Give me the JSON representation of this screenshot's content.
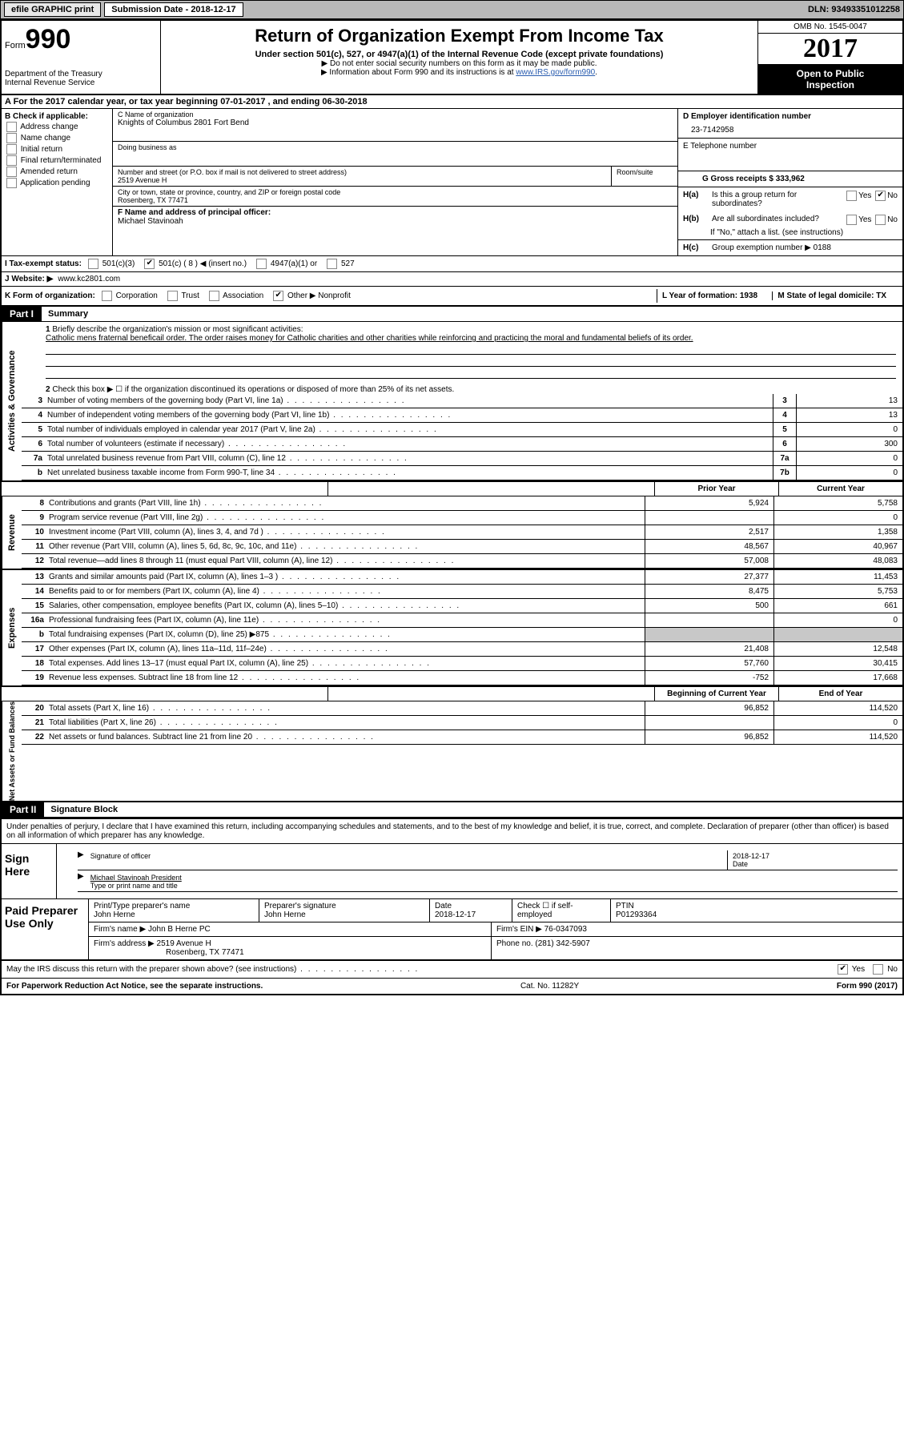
{
  "top": {
    "efile": "efile GRAPHIC print",
    "submission_label": "Submission Date - 2018-12-17",
    "dln": "DLN: 93493351012258"
  },
  "header": {
    "form": "Form",
    "num": "990",
    "dept1": "Department of the Treasury",
    "dept2": "Internal Revenue Service",
    "title": "Return of Organization Exempt From Income Tax",
    "sub1": "Under section 501(c), 527, or 4947(a)(1) of the Internal Revenue Code (except private foundations)",
    "sub2a": "▶ Do not enter social security numbers on this form as it may be made public.",
    "sub2b_pre": "▶ Information about Form 990 and its instructions is at ",
    "sub2b_link": "www.IRS.gov/form990",
    "omb": "OMB No. 1545-0047",
    "year": "2017",
    "open1": "Open to Public",
    "open2": "Inspection"
  },
  "a_line": "A  For the 2017 calendar year, or tax year beginning 07-01-2017    , and ending 06-30-2018",
  "b": {
    "header": "B Check if applicable:",
    "opts": [
      "Address change",
      "Name change",
      "Initial return",
      "Final return/terminated",
      "Amended return",
      "Application pending"
    ]
  },
  "c": {
    "label": "C Name of organization",
    "name": "Knights of Columbus 2801 Fort Bend",
    "dba_label": "Doing business as",
    "addr_label": "Number and street (or P.O. box if mail is not delivered to street address)",
    "room_label": "Room/suite",
    "addr": "2519 Avenue H",
    "city_label": "City or town, state or province, country, and ZIP or foreign postal code",
    "city": "Rosenberg, TX  77471",
    "f_label": "F Name and address of principal officer:",
    "f_name": "Michael Stavinoah"
  },
  "d": {
    "label": "D Employer identification number",
    "ein": "23-7142958",
    "e_label": "E Telephone number",
    "g_label": "G Gross receipts $ 333,962"
  },
  "h": {
    "ha": "Is this a group return for subordinates?",
    "hb": "Are all subordinates included?",
    "ifno": "If \"No,\" attach a list. (see instructions)",
    "hc": "Group exemption number ▶   0188",
    "yes": "Yes",
    "no": "No"
  },
  "i": {
    "label": "I   Tax-exempt status:",
    "o1": "501(c)(3)",
    "o2": "501(c) ( 8 ) ◀ (insert no.)",
    "o3": "4947(a)(1) or",
    "o4": "527"
  },
  "j": {
    "label": "J   Website: ▶",
    "val": "www.kc2801.com"
  },
  "k": {
    "label": "K Form of organization:",
    "o1": "Corporation",
    "o2": "Trust",
    "o3": "Association",
    "o4": "Other ▶ Nonprofit",
    "l": "L Year of formation: 1938",
    "m": "M State of legal domicile: TX"
  },
  "part1": {
    "part": "Part I",
    "title": "Summary",
    "tab_act": "Activities & Governance",
    "tab_rev": "Revenue",
    "tab_exp": "Expenses",
    "tab_net": "Net Assets or Fund Balances",
    "l1": "Briefly describe the organization's mission or most significant activities:",
    "mission": "Catholic mens fraternal beneficail order. The order raises money for Catholic charities and other charities while reinforcing and practicing the moral and fundamental beliefs of its order.",
    "l2": "Check this box ▶ ☐  if the organization discontinued its operations or disposed of more than 25% of its net assets.",
    "rows_act": [
      {
        "n": "3",
        "d": "Number of voting members of the governing body (Part VI, line 1a)",
        "b": "3",
        "v": "13"
      },
      {
        "n": "4",
        "d": "Number of independent voting members of the governing body (Part VI, line 1b)",
        "b": "4",
        "v": "13"
      },
      {
        "n": "5",
        "d": "Total number of individuals employed in calendar year 2017 (Part V, line 2a)",
        "b": "5",
        "v": "0"
      },
      {
        "n": "6",
        "d": "Total number of volunteers (estimate if necessary)",
        "b": "6",
        "v": "300"
      },
      {
        "n": "7a",
        "d": "Total unrelated business revenue from Part VIII, column (C), line 12",
        "b": "7a",
        "v": "0"
      },
      {
        "n": "b",
        "d": "Net unrelated business taxable income from Form 990-T, line 34",
        "b": "7b",
        "v": "0"
      }
    ],
    "prior": "Prior Year",
    "current": "Current Year",
    "rows_rev": [
      {
        "n": "8",
        "d": "Contributions and grants (Part VIII, line 1h)",
        "p": "5,924",
        "c": "5,758"
      },
      {
        "n": "9",
        "d": "Program service revenue (Part VIII, line 2g)",
        "p": "",
        "c": "0"
      },
      {
        "n": "10",
        "d": "Investment income (Part VIII, column (A), lines 3, 4, and 7d )",
        "p": "2,517",
        "c": "1,358"
      },
      {
        "n": "11",
        "d": "Other revenue (Part VIII, column (A), lines 5, 6d, 8c, 9c, 10c, and 11e)",
        "p": "48,567",
        "c": "40,967"
      },
      {
        "n": "12",
        "d": "Total revenue—add lines 8 through 11 (must equal Part VIII, column (A), line 12)",
        "p": "57,008",
        "c": "48,083"
      }
    ],
    "rows_exp": [
      {
        "n": "13",
        "d": "Grants and similar amounts paid (Part IX, column (A), lines 1–3 )",
        "p": "27,377",
        "c": "11,453"
      },
      {
        "n": "14",
        "d": "Benefits paid to or for members (Part IX, column (A), line 4)",
        "p": "8,475",
        "c": "5,753"
      },
      {
        "n": "15",
        "d": "Salaries, other compensation, employee benefits (Part IX, column (A), lines 5–10)",
        "p": "500",
        "c": "661"
      },
      {
        "n": "16a",
        "d": "Professional fundraising fees (Part IX, column (A), line 11e)",
        "p": "",
        "c": "0"
      },
      {
        "n": "b",
        "d": "Total fundraising expenses (Part IX, column (D), line 25) ▶875",
        "p": "SHADE",
        "c": "SHADE"
      },
      {
        "n": "17",
        "d": "Other expenses (Part IX, column (A), lines 11a–11d, 11f–24e)",
        "p": "21,408",
        "c": "12,548"
      },
      {
        "n": "18",
        "d": "Total expenses. Add lines 13–17 (must equal Part IX, column (A), line 25)",
        "p": "57,760",
        "c": "30,415"
      },
      {
        "n": "19",
        "d": "Revenue less expenses. Subtract line 18 from line 12",
        "p": "-752",
        "c": "17,668"
      }
    ],
    "begin": "Beginning of Current Year",
    "end": "End of Year",
    "rows_net": [
      {
        "n": "20",
        "d": "Total assets (Part X, line 16)",
        "p": "96,852",
        "c": "114,520"
      },
      {
        "n": "21",
        "d": "Total liabilities (Part X, line 26)",
        "p": "",
        "c": "0"
      },
      {
        "n": "22",
        "d": "Net assets or fund balances. Subtract line 21 from line 20",
        "p": "96,852",
        "c": "114,520"
      }
    ]
  },
  "part2": {
    "part": "Part II",
    "title": "Signature Block",
    "disclaim": "Under penalties of perjury, I declare that I have examined this return, including accompanying schedules and statements, and to the best of my knowledge and belief, it is true, correct, and complete. Declaration of preparer (other than officer) is based on all information of which preparer has any knowledge.",
    "sign_here": "Sign Here",
    "sig_officer": "Signature of officer",
    "sig_date": "2018-12-17",
    "date_label": "Date",
    "officer_name": "Michael Stavinoah President",
    "type_name": "Type or print name and title",
    "paid": "Paid Preparer Use Only",
    "pp_name_label": "Print/Type preparer's name",
    "pp_name": "John Herne",
    "pp_sig_label": "Preparer's signature",
    "pp_sig": "John Herne",
    "pp_date_label": "Date",
    "pp_date": "2018-12-17",
    "pp_check": "Check ☐ if self-employed",
    "ptin_label": "PTIN",
    "ptin": "P01293364",
    "firm_name_label": "Firm's name      ▶",
    "firm_name": "John B Herne PC",
    "firm_ein_label": "Firm's EIN ▶",
    "firm_ein": "76-0347093",
    "firm_addr_label": "Firm's address ▶",
    "firm_addr1": "2519 Avenue H",
    "firm_addr2": "Rosenberg, TX  77471",
    "phone_label": "Phone no.",
    "phone": "(281) 342-5907",
    "irs_q": "May the IRS discuss this return with the preparer shown above? (see instructions)",
    "yes": "Yes",
    "no": "No"
  },
  "footer": {
    "left": "For Paperwork Reduction Act Notice, see the separate instructions.",
    "mid": "Cat. No. 11282Y",
    "right": "Form 990 (2017)"
  }
}
